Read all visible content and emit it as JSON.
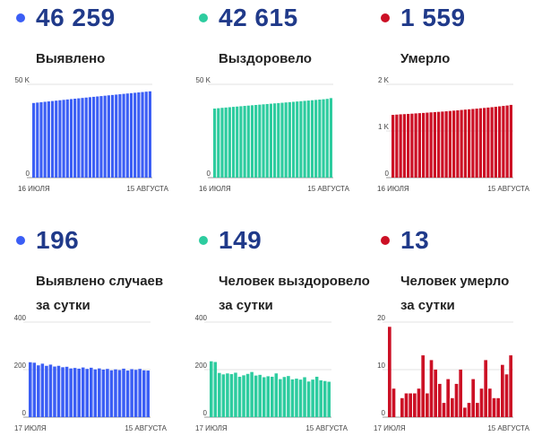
{
  "colors": {
    "blue": "#3b5ef5",
    "green": "#2dcc9f",
    "red": "#cc1025",
    "number": "#203a8a"
  },
  "panels": [
    {
      "value": "46 259",
      "label1": "Выявлено",
      "label2": "",
      "color": "blue"
    },
    {
      "value": "42 615",
      "label1": "Выздоровело",
      "label2": "",
      "color": "green"
    },
    {
      "value": "1 559",
      "label1": "Умерло",
      "label2": "",
      "color": "red"
    },
    {
      "value": "196",
      "label1": "Выявлено случаев",
      "label2": "за сутки",
      "color": "blue"
    },
    {
      "value": "149",
      "label1": "Человек выздоровело",
      "label2": "за сутки",
      "color": "green"
    },
    {
      "value": "13",
      "label1": "Человек умерло",
      "label2": "за сутки",
      "color": "red"
    }
  ],
  "chart_data": [
    {
      "type": "bar",
      "title": "Выявлено",
      "color": "blue",
      "x_start_label": "16 ИЮЛЯ",
      "x_end_label": "15 АВГУСТА",
      "ylim": [
        0,
        50000
      ],
      "yticks": [
        0,
        50000
      ],
      "ytick_labels": [
        "0",
        "50 K"
      ],
      "values": [
        40000,
        40218,
        40430,
        40640,
        40848,
        41050,
        41257,
        41474,
        41680,
        41890,
        42093,
        42300,
        42500,
        42700,
        42903,
        43110,
        43310,
        43506,
        43703,
        43905,
        44105,
        44300,
        44495,
        44690,
        44887,
        45087,
        45280,
        45475,
        45668,
        45866,
        46063,
        46259
      ]
    },
    {
      "type": "bar",
      "title": "Выздоровело",
      "color": "green",
      "x_start_label": "16 ИЮЛЯ",
      "x_end_label": "15 АВГУСТА",
      "ylim": [
        0,
        50000
      ],
      "yticks": [
        0,
        50000
      ],
      "ytick_labels": [
        "0",
        "50 K"
      ],
      "values": [
        37000,
        37200,
        37400,
        37560,
        37740,
        37920,
        38090,
        38260,
        38440,
        38610,
        38780,
        38940,
        39110,
        39280,
        39450,
        39620,
        39790,
        39960,
        40120,
        40290,
        40460,
        40630,
        40800,
        40970,
        41140,
        41310,
        41480,
        41650,
        41820,
        42000,
        42200,
        42615
      ]
    },
    {
      "type": "bar",
      "title": "Умерло",
      "color": "red",
      "x_start_label": "16 ИЮЛЯ",
      "x_end_label": "15 АВГУСТА",
      "ylim": [
        0,
        2000
      ],
      "yticks": [
        0,
        1000,
        2000
      ],
      "ytick_labels": [
        "0",
        "1 K",
        "2 K"
      ],
      "values": [
        1345,
        1351,
        1357,
        1361,
        1366,
        1371,
        1377,
        1382,
        1387,
        1393,
        1399,
        1404,
        1410,
        1416,
        1422,
        1429,
        1436,
        1443,
        1451,
        1458,
        1465,
        1472,
        1479,
        1487,
        1494,
        1502,
        1510,
        1519,
        1528,
        1537,
        1546,
        1559
      ]
    },
    {
      "type": "bar",
      "title": "Выявлено случаев за сутки",
      "color": "blue",
      "x_start_label": "17 ИЮЛЯ",
      "x_end_label": "15 АВГУСТА",
      "ylim": [
        0,
        400
      ],
      "yticks": [
        0,
        200,
        400
      ],
      "ytick_labels": [
        "0",
        "200",
        "400"
      ],
      "values": [
        231,
        229,
        218,
        225,
        216,
        221,
        213,
        216,
        210,
        212,
        205,
        207,
        204,
        209,
        203,
        208,
        201,
        205,
        200,
        203,
        197,
        201,
        198,
        204,
        196,
        202,
        199,
        203,
        197,
        196
      ]
    },
    {
      "type": "bar",
      "title": "Человек выздоровело за сутки",
      "color": "green",
      "x_start_label": "17 ИЮЛЯ",
      "x_end_label": "15 АВГУСТА",
      "ylim": [
        0,
        400
      ],
      "yticks": [
        0,
        200,
        400
      ],
      "ytick_labels": [
        "0",
        "200",
        "400"
      ],
      "values": [
        235,
        232,
        186,
        180,
        184,
        181,
        187,
        170,
        176,
        182,
        190,
        175,
        178,
        168,
        172,
        170,
        184,
        160,
        169,
        173,
        159,
        162,
        158,
        168,
        150,
        158,
        170,
        155,
        152,
        149
      ]
    },
    {
      "type": "bar",
      "title": "Человек умерло за сутки",
      "color": "red",
      "x_start_label": "17 ИЮЛЯ",
      "x_end_label": "15 АВГУСТА",
      "ylim": [
        0,
        20
      ],
      "yticks": [
        0,
        10,
        20
      ],
      "ytick_labels": [
        "0",
        "10",
        "20"
      ],
      "values": [
        19,
        6,
        0,
        4,
        5,
        5,
        5,
        6,
        13,
        5,
        12,
        10,
        7,
        3,
        8,
        4,
        7,
        10,
        2,
        3,
        8,
        3,
        6,
        12,
        6,
        4,
        4,
        11,
        9,
        13
      ]
    }
  ]
}
